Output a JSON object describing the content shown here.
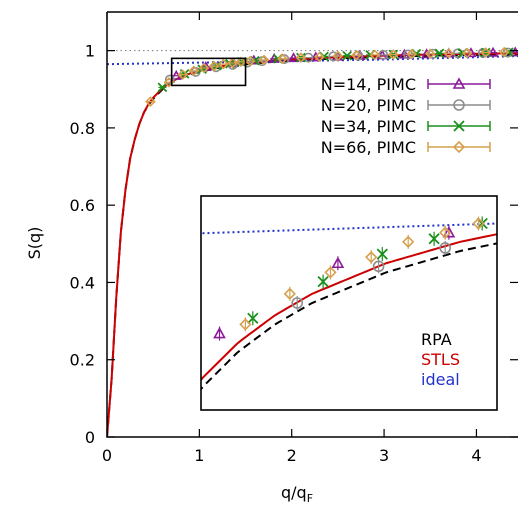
{
  "chart_data": {
    "type": "line",
    "xlabel": "q/q",
    "xlabel_sub": "F",
    "ylabel": "S(q)",
    "xlim": [
      0,
      4.45
    ],
    "ylim": [
      0,
      1.1
    ],
    "xticks": [
      0,
      1,
      2,
      3,
      4
    ],
    "xtick_labels": [
      "0",
      "1",
      "2",
      "3",
      "4"
    ],
    "yticks": [
      0,
      0.2,
      0.4,
      0.6,
      0.8,
      1
    ],
    "ytick_labels": [
      "0",
      "0.2",
      "0.4",
      "0.6",
      "0.8",
      "1"
    ],
    "grid": false,
    "legend_position": "top-right",
    "text_legend_position": "inset-bottom-right",
    "series": [
      {
        "name": "N=14, PIMC",
        "kind": "points",
        "marker": "triangle",
        "color": "#8b1a9a",
        "x": [
          0.75,
          1.07,
          1.37,
          1.59,
          1.81,
          2.02,
          2.26,
          2.5,
          2.74,
          2.98,
          3.22,
          3.46,
          3.7,
          3.94,
          4.18,
          4.42
        ],
        "y": [
          0.935,
          0.958,
          0.968,
          0.975,
          0.979,
          0.981,
          0.983,
          0.985,
          0.987,
          0.988,
          0.99,
          0.991,
          0.993,
          0.994,
          0.995,
          0.996
        ]
      },
      {
        "name": "N=20, PIMC",
        "kind": "points",
        "marker": "circle",
        "color": "#8c8c8c",
        "x": [
          0.68,
          0.96,
          1.18,
          1.36,
          1.52,
          1.68,
          1.92,
          2.18,
          2.45,
          2.72,
          2.99,
          3.26,
          3.53,
          3.8,
          4.07,
          4.34
        ],
        "y": [
          0.925,
          0.945,
          0.957,
          0.963,
          0.969,
          0.973,
          0.978,
          0.982,
          0.985,
          0.987,
          0.989,
          0.99,
          0.992,
          0.993,
          0.994,
          0.995
        ]
      },
      {
        "name": "N=34, PIMC",
        "kind": "points",
        "marker": "cross",
        "color": "#1a8f1a",
        "x": [
          0.6,
          0.84,
          1.03,
          1.19,
          1.33,
          1.46,
          1.6,
          1.85,
          2.1,
          2.35,
          2.6,
          2.85,
          3.1,
          3.35,
          3.6,
          3.85,
          4.1,
          4.35
        ],
        "y": [
          0.905,
          0.94,
          0.952,
          0.961,
          0.966,
          0.971,
          0.974,
          0.979,
          0.982,
          0.985,
          0.987,
          0.989,
          0.99,
          0.992,
          0.993,
          0.994,
          0.995,
          0.996
        ]
      },
      {
        "name": "N=66, PIMC",
        "kind": "points",
        "marker": "diamond",
        "color": "#d6a04e",
        "x": [
          0.47,
          0.67,
          0.82,
          0.94,
          1.05,
          1.16,
          1.26,
          1.36,
          1.45,
          1.55,
          1.7,
          1.9,
          2.1,
          2.3,
          2.5,
          2.7,
          2.9,
          3.1,
          3.3,
          3.5,
          3.7,
          3.9,
          4.1,
          4.3
        ],
        "y": [
          0.868,
          0.918,
          0.938,
          0.948,
          0.955,
          0.96,
          0.965,
          0.968,
          0.971,
          0.973,
          0.976,
          0.979,
          0.982,
          0.984,
          0.986,
          0.988,
          0.989,
          0.99,
          0.991,
          0.992,
          0.993,
          0.994,
          0.995,
          0.996
        ]
      },
      {
        "name": "RPA",
        "kind": "curve",
        "style": "dashed",
        "color": "#000000",
        "x": [
          0,
          0.05,
          0.1,
          0.15,
          0.2,
          0.25,
          0.3,
          0.35,
          0.4,
          0.45,
          0.5,
          0.6,
          0.7,
          0.8,
          0.9,
          1.0,
          1.2,
          1.4,
          1.6,
          1.8,
          2.0,
          2.5,
          3.0,
          3.5,
          4.0,
          4.45
        ],
        "y": [
          0,
          0.15,
          0.36,
          0.53,
          0.64,
          0.72,
          0.77,
          0.81,
          0.84,
          0.86,
          0.875,
          0.9,
          0.917,
          0.929,
          0.938,
          0.945,
          0.955,
          0.962,
          0.967,
          0.971,
          0.974,
          0.98,
          0.984,
          0.987,
          0.989,
          0.99
        ]
      },
      {
        "name": "STLS",
        "kind": "curve",
        "style": "solid",
        "color": "#cc0000",
        "x": [
          0,
          0.05,
          0.1,
          0.15,
          0.2,
          0.25,
          0.3,
          0.35,
          0.4,
          0.45,
          0.5,
          0.6,
          0.7,
          0.8,
          0.9,
          1.0,
          1.2,
          1.4,
          1.6,
          1.8,
          2.0,
          2.5,
          3.0,
          3.5,
          4.0,
          4.45
        ],
        "y": [
          0,
          0.15,
          0.36,
          0.53,
          0.64,
          0.72,
          0.77,
          0.81,
          0.84,
          0.862,
          0.878,
          0.903,
          0.92,
          0.932,
          0.941,
          0.948,
          0.958,
          0.965,
          0.97,
          0.974,
          0.977,
          0.983,
          0.987,
          0.99,
          0.992,
          0.993
        ]
      },
      {
        "name": "ideal",
        "kind": "curve",
        "style": "dotted",
        "color": "#2233cc",
        "x": [
          0,
          0.5,
          1.0,
          1.5,
          2.0,
          2.5,
          3.0,
          3.5,
          4.0,
          4.45
        ],
        "y": [
          0.965,
          0.967,
          0.969,
          0.971,
          0.973,
          0.975,
          0.977,
          0.98,
          0.983,
          0.986
        ]
      }
    ],
    "reference_line": {
      "y": 1.0,
      "style": "dotted",
      "color": "#777777"
    },
    "zoom_box": {
      "xlim": [
        0.7,
        1.5
      ],
      "ylim": [
        0.91,
        0.98
      ]
    },
    "inset": {
      "xlim": [
        0.7,
        1.5
      ],
      "ylim": [
        0.91,
        0.98
      ],
      "legend": [
        {
          "label": "RPA",
          "color": "#000000"
        },
        {
          "label": "STLS",
          "color": "#cc0000"
        },
        {
          "label": "ideal",
          "color": "#2233cc"
        }
      ]
    }
  }
}
